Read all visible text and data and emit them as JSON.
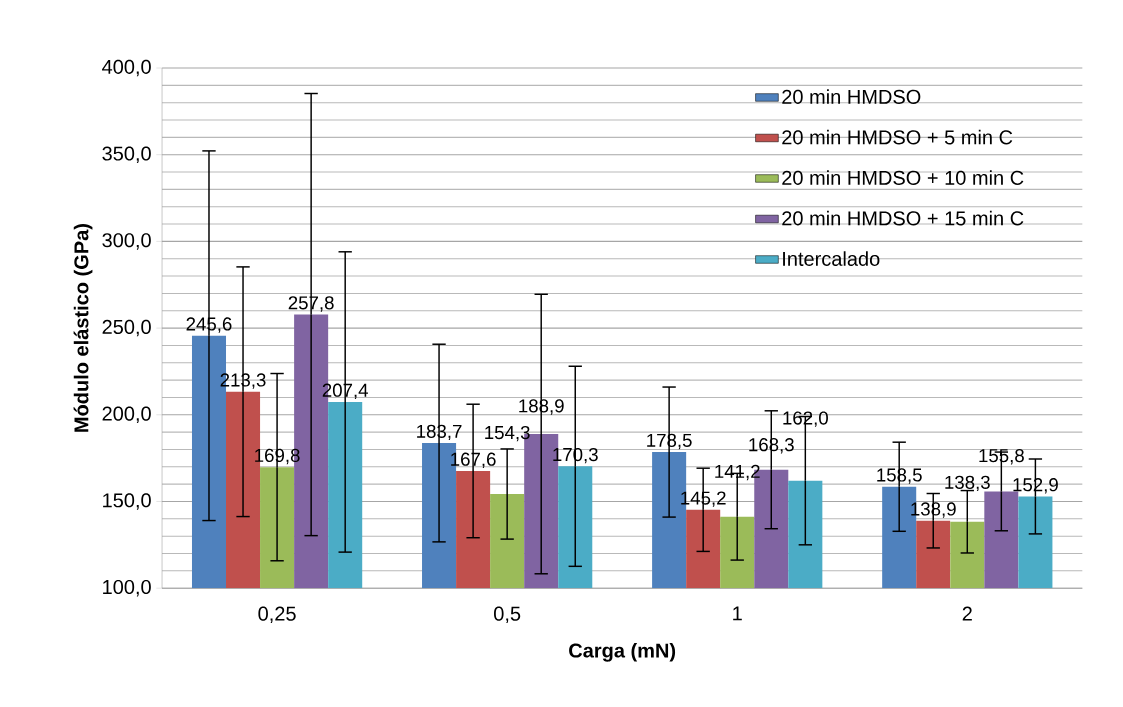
{
  "chart_data": {
    "type": "bar",
    "xlabel": "Carga (mN)",
    "ylabel": "Módulo elástico (GPa)",
    "categories": [
      "0,25",
      "0,5",
      "1",
      "2"
    ],
    "series": [
      {
        "name": "20 min HMDSO",
        "color": "#4f81bd",
        "values": [
          245.6,
          183.7,
          178.5,
          158.5
        ],
        "value_labels": [
          "245,6",
          "183,7",
          "178,5",
          "158,5"
        ],
        "errors": [
          106.6,
          57,
          37.5,
          25.7
        ]
      },
      {
        "name": "20 min HMDSO + 5 min C",
        "color": "#c0504d",
        "values": [
          213.3,
          167.6,
          145.2,
          138.9
        ],
        "value_labels": [
          "213,3",
          "167,6",
          "145,2",
          "138,9"
        ],
        "errors": [
          72,
          38.5,
          24,
          15.7
        ]
      },
      {
        "name": "20 min HMDSO + 10 min C",
        "color": "#9bbb59",
        "values": [
          169.8,
          154.3,
          141.2,
          138.3
        ],
        "value_labels": [
          "169,8",
          "154,3",
          "141,2",
          "138,3"
        ],
        "errors": [
          54,
          26,
          25,
          18
        ]
      },
      {
        "name": "20 min HMDSO + 15 min C",
        "color": "#8064a2",
        "values": [
          257.8,
          188.9,
          168.3,
          155.8
        ],
        "value_labels": [
          "257,8",
          "188,9",
          "168,3",
          "155,8"
        ],
        "errors": [
          127.5,
          80.6,
          34,
          22.7
        ]
      },
      {
        "name": "Intercalado",
        "color": "#4bacc6",
        "values": [
          207.4,
          170.3,
          162.0,
          152.9
        ],
        "value_labels": [
          "207,4",
          "170,3",
          "162,0",
          "152,9"
        ],
        "errors": [
          86.6,
          57.7,
          37,
          21.6
        ]
      }
    ],
    "ylim": [
      100,
      400
    ],
    "yticks": [
      {
        "value": 100,
        "label": "100,0"
      },
      {
        "value": 150,
        "label": "150,0"
      },
      {
        "value": 200,
        "label": "200,0"
      },
      {
        "value": 250,
        "label": "250,0"
      },
      {
        "value": 300,
        "label": "300,0"
      },
      {
        "value": 350,
        "label": "350,0"
      },
      {
        "value": 400,
        "label": "400,0"
      }
    ],
    "grid": "y",
    "legend": "top right"
  }
}
